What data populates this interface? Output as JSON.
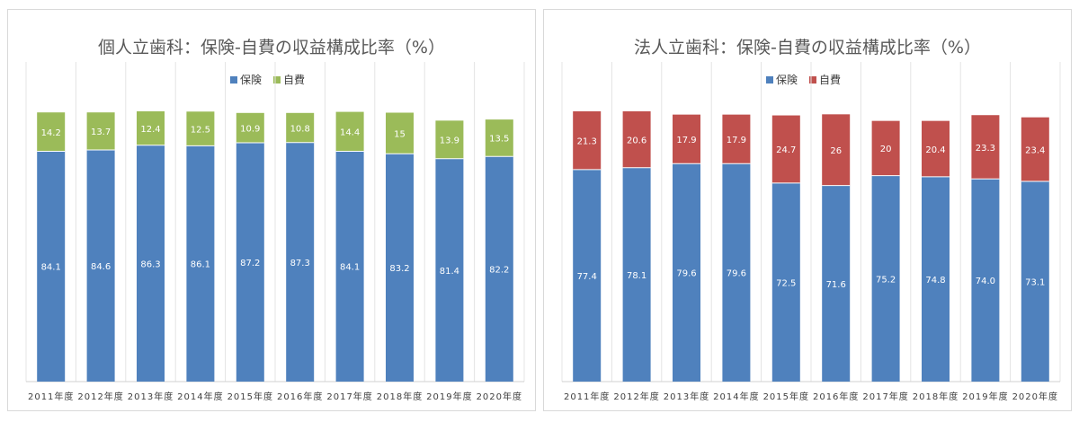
{
  "colors": {
    "insurance": "#4f81bd",
    "self_pay_left": "#9bbb59",
    "self_pay_right": "#c0504d"
  },
  "chart_data": [
    {
      "type": "bar",
      "stacked": true,
      "title": "個人立歯科：保険-自費の収益構成比率（%）",
      "legend_position": "top",
      "grid": true,
      "categories": [
        "2011年度",
        "2012年度",
        "2013年度",
        "2014年度",
        "2015年度",
        "2016年度",
        "2017年度",
        "2018年度",
        "2019年度",
        "2020年度"
      ],
      "value_labels": {
        "insurance": [
          "84.1",
          "84.6",
          "86.3",
          "86.1",
          "87.2",
          "87.3",
          "84.1",
          "83.2",
          "81.4",
          "82.2"
        ],
        "self_pay": [
          "14.2",
          "13.7",
          "12.4",
          "12.5",
          "10.9",
          "10.8",
          "14.4",
          "15",
          "13.9",
          "13.5"
        ]
      },
      "series": [
        {
          "name": "保険",
          "values": [
            84.1,
            84.6,
            86.3,
            86.1,
            87.2,
            87.3,
            84.1,
            83.2,
            81.4,
            82.2
          ]
        },
        {
          "name": "自費",
          "values": [
            14.2,
            13.7,
            12.4,
            12.5,
            10.9,
            10.8,
            14.4,
            15,
            13.9,
            13.5
          ]
        }
      ],
      "ylim": [
        0,
        100
      ]
    },
    {
      "type": "bar",
      "stacked": true,
      "title": "法人立歯科：保険-自費の収益構成比率（%）",
      "legend_position": "top",
      "grid": true,
      "categories": [
        "2011年度",
        "2012年度",
        "2013年度",
        "2014年度",
        "2015年度",
        "2016年度",
        "2017年度",
        "2018年度",
        "2019年度",
        "2020年度"
      ],
      "value_labels": {
        "insurance": [
          "77.4",
          "78.1",
          "79.6",
          "79.6",
          "72.5",
          "71.6",
          "75.2",
          "74.8",
          "74.0",
          "73.1"
        ],
        "self_pay": [
          "21.3",
          "20.6",
          "17.9",
          "17.9",
          "24.7",
          "26",
          "20",
          "20.4",
          "23.3",
          "23.4"
        ]
      },
      "series": [
        {
          "name": "保険",
          "values": [
            77.4,
            78.1,
            79.6,
            79.6,
            72.5,
            71.6,
            75.2,
            74.8,
            74.0,
            73.1
          ]
        },
        {
          "name": "自費",
          "values": [
            21.3,
            20.6,
            17.9,
            17.9,
            24.7,
            26,
            20,
            20.4,
            23.3,
            23.4
          ]
        }
      ],
      "ylim": [
        0,
        100
      ]
    }
  ]
}
